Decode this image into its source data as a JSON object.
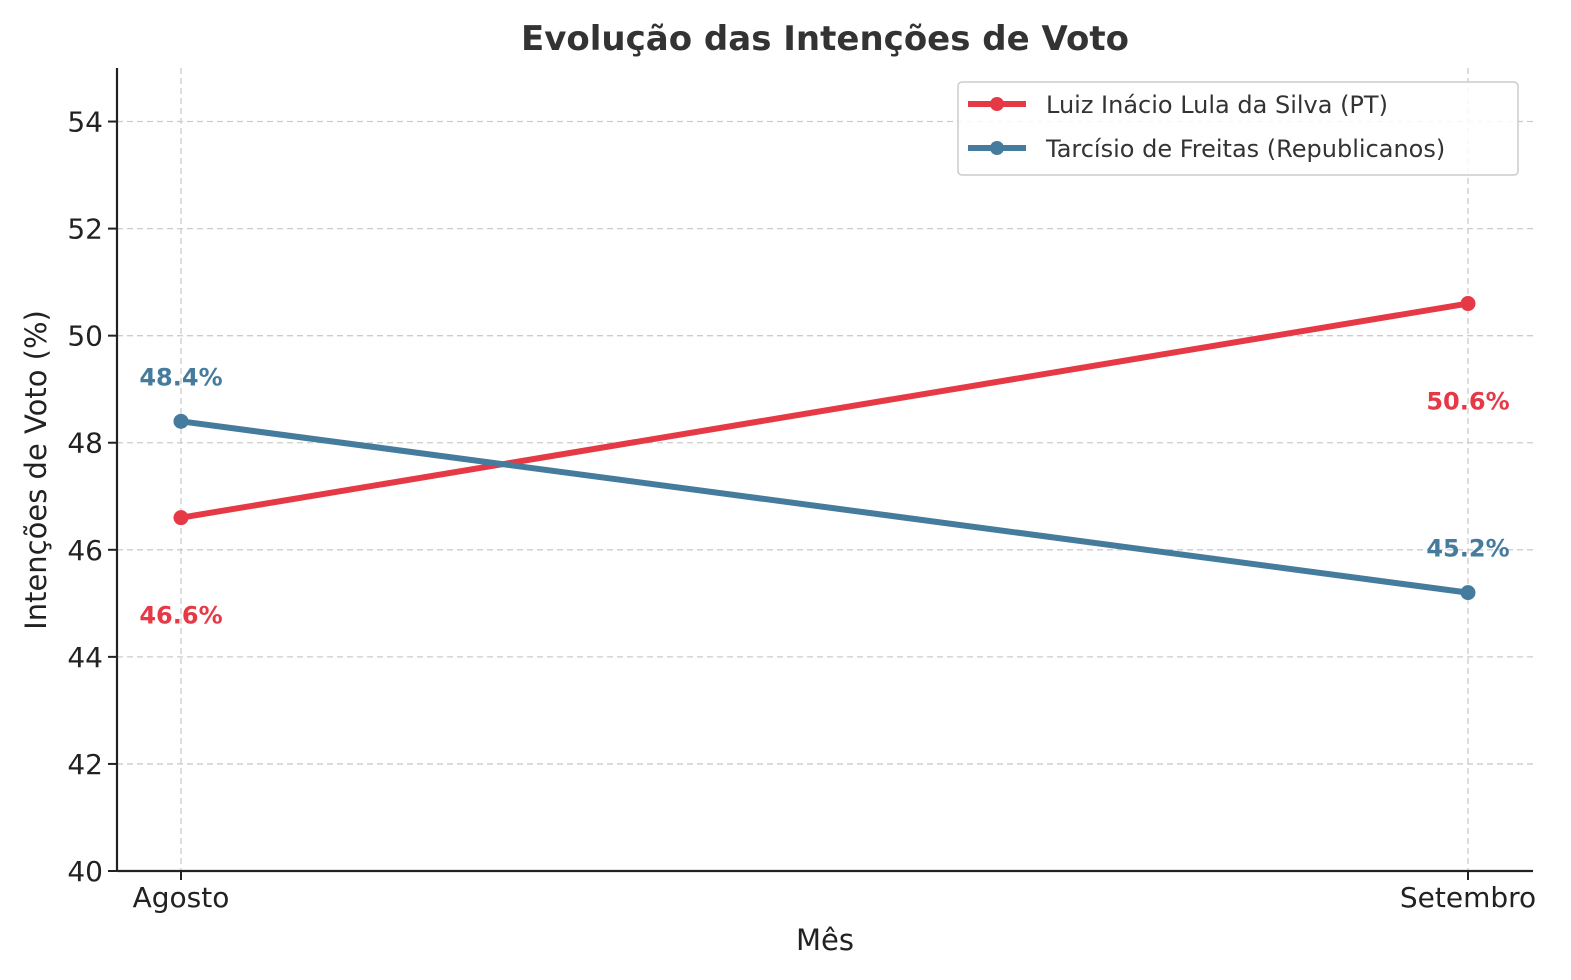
{
  "chart_data": {
    "type": "line",
    "title": "Evolução das Intenções de Voto",
    "xlabel": "Mês",
    "ylabel": "Intenções de Voto (%)",
    "categories": [
      "Agosto",
      "Setembro"
    ],
    "ylim": [
      40,
      55
    ],
    "yticks": [
      40,
      42,
      44,
      46,
      48,
      50,
      52,
      54
    ],
    "grid": true,
    "legend_position": "top-right",
    "series": [
      {
        "name": "Luiz Inácio Lula da Silva (PT)",
        "color": "#e63946",
        "values": [
          46.6,
          50.6
        ],
        "labels": [
          "46.6%",
          "50.6%"
        ],
        "label_position": "below"
      },
      {
        "name": "Tarcísio de Freitas (Republicanos)",
        "color": "#457b9d",
        "values": [
          48.4,
          45.2
        ],
        "labels": [
          "48.4%",
          "45.2%"
        ],
        "label_position": "above"
      }
    ]
  }
}
